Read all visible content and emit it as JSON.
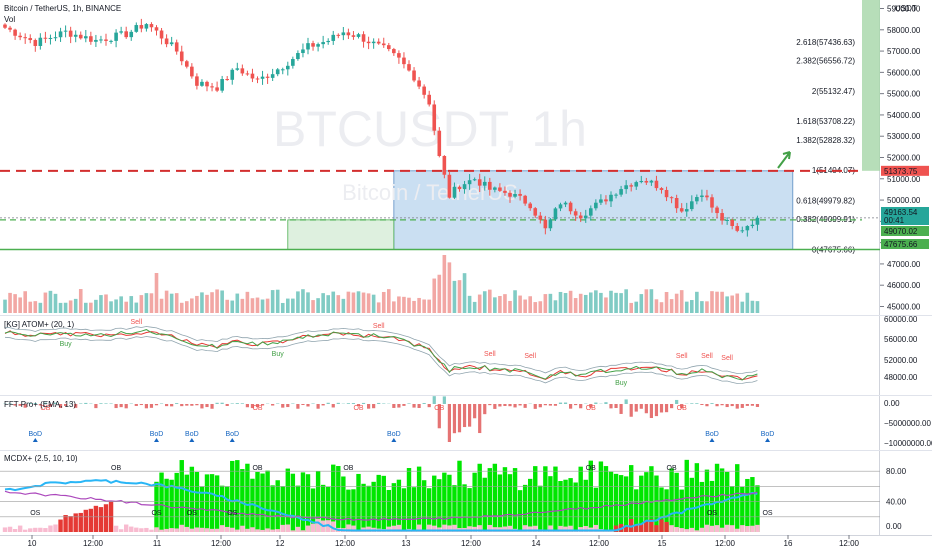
{
  "header": {
    "symbol_line": "Bitcoin / TetherUS, 1h, BINANCE",
    "vol_label": "Vol",
    "watermark_main": "BTCUSDT, 1h",
    "watermark_sub": "Bitcoin / TetherUS",
    "currency": "USDT"
  },
  "indicators": {
    "atom_label": "[KG] ATOM+ (20, 1)",
    "fft_label": "FFT Pro+ (EMA, 13)",
    "mcdx_label": "MCDX+ (2.5, 10, 10)"
  },
  "price_axis": {
    "ticks": [
      "59000.00",
      "58000.00",
      "57000.00",
      "56000.00",
      "55000.00",
      "54000.00",
      "53000.00",
      "52000.00",
      "51000.00",
      "50000.00",
      "49000.00",
      "48000.00",
      "47000.00",
      "46000.00",
      "45000.00"
    ],
    "badges": [
      {
        "text": "51373.75",
        "color": "#ef5350"
      },
      {
        "text": "49163.54",
        "color": "#26a69a"
      },
      {
        "text": "00:41",
        "color": "#26a69a"
      },
      {
        "text": "49070.02",
        "color": "#4caf50"
      },
      {
        "text": "47675.66",
        "color": "#4caf50"
      }
    ]
  },
  "fib_levels": [
    {
      "label": "2.618(57436.63)"
    },
    {
      "label": "2.382(56556.72)"
    },
    {
      "label": "2(55132.47)"
    },
    {
      "label": "1.618(53708.22)"
    },
    {
      "label": "1.382(52828.32)"
    },
    {
      "label": "1(51404.07)"
    },
    {
      "label": "0.618(49979.82)"
    },
    {
      "label": "0.382(49099.91)"
    },
    {
      "label": "0(47675.66)"
    }
  ],
  "atom_axis": [
    "60000.00",
    "56000.00",
    "52000.00",
    "48000.00"
  ],
  "fft_axis": [
    "0.00",
    "−5000000.00",
    "−10000000.00"
  ],
  "mcdx_axis": [
    "80.00",
    "40.00",
    "0.00"
  ],
  "time_axis": [
    "10",
    "12:00",
    "11",
    "12:00",
    "12",
    "12:00",
    "13",
    "12:00",
    "14",
    "12:00",
    "15",
    "12:00",
    "16",
    "12:00"
  ],
  "signals": {
    "sell": "Sell",
    "buy": "Buy",
    "ob": "OB",
    "bod": "BoD",
    "os": "OS"
  },
  "colors": {
    "up": "#26a69a",
    "down": "#ef5350",
    "box": "#9fc5e8",
    "green_zone": "#c8e6c9",
    "resistance": "#d32f2f",
    "support": "#4caf50",
    "mcdx_green": "#00e600",
    "mcdx_red": "#e53935"
  },
  "chart_data": {
    "type": "candlestick",
    "title": "Bitcoin / TetherUS, 1h, BINANCE",
    "ylim": [
      44600,
      59400
    ],
    "levels": {
      "resistance": 51373.75,
      "last_price": 49163.54,
      "support_upper": 49070.02,
      "support_lower": 47675.66
    },
    "ohlc_anchor_points": [
      {
        "x": "10",
        "close": 58100
      },
      {
        "x": "10 12:00",
        "close": 57800
      },
      {
        "x": "11",
        "close": 57300
      },
      {
        "x": "11 12:00",
        "close": 55700
      },
      {
        "x": "12",
        "close": 55900
      },
      {
        "x": "12 12:00",
        "close": 57600
      },
      {
        "x": "13",
        "close": 57200
      },
      {
        "x": "13 08:00",
        "close": 54800
      },
      {
        "x": "13 12:00",
        "close": 50700
      },
      {
        "x": "14",
        "close": 49100
      },
      {
        "x": "14 12:00",
        "close": 50100
      },
      {
        "x": "15",
        "close": 50800
      },
      {
        "x": "15 12:00",
        "close": 48700
      },
      {
        "x": "15 18:00",
        "close": 49160
      }
    ]
  }
}
